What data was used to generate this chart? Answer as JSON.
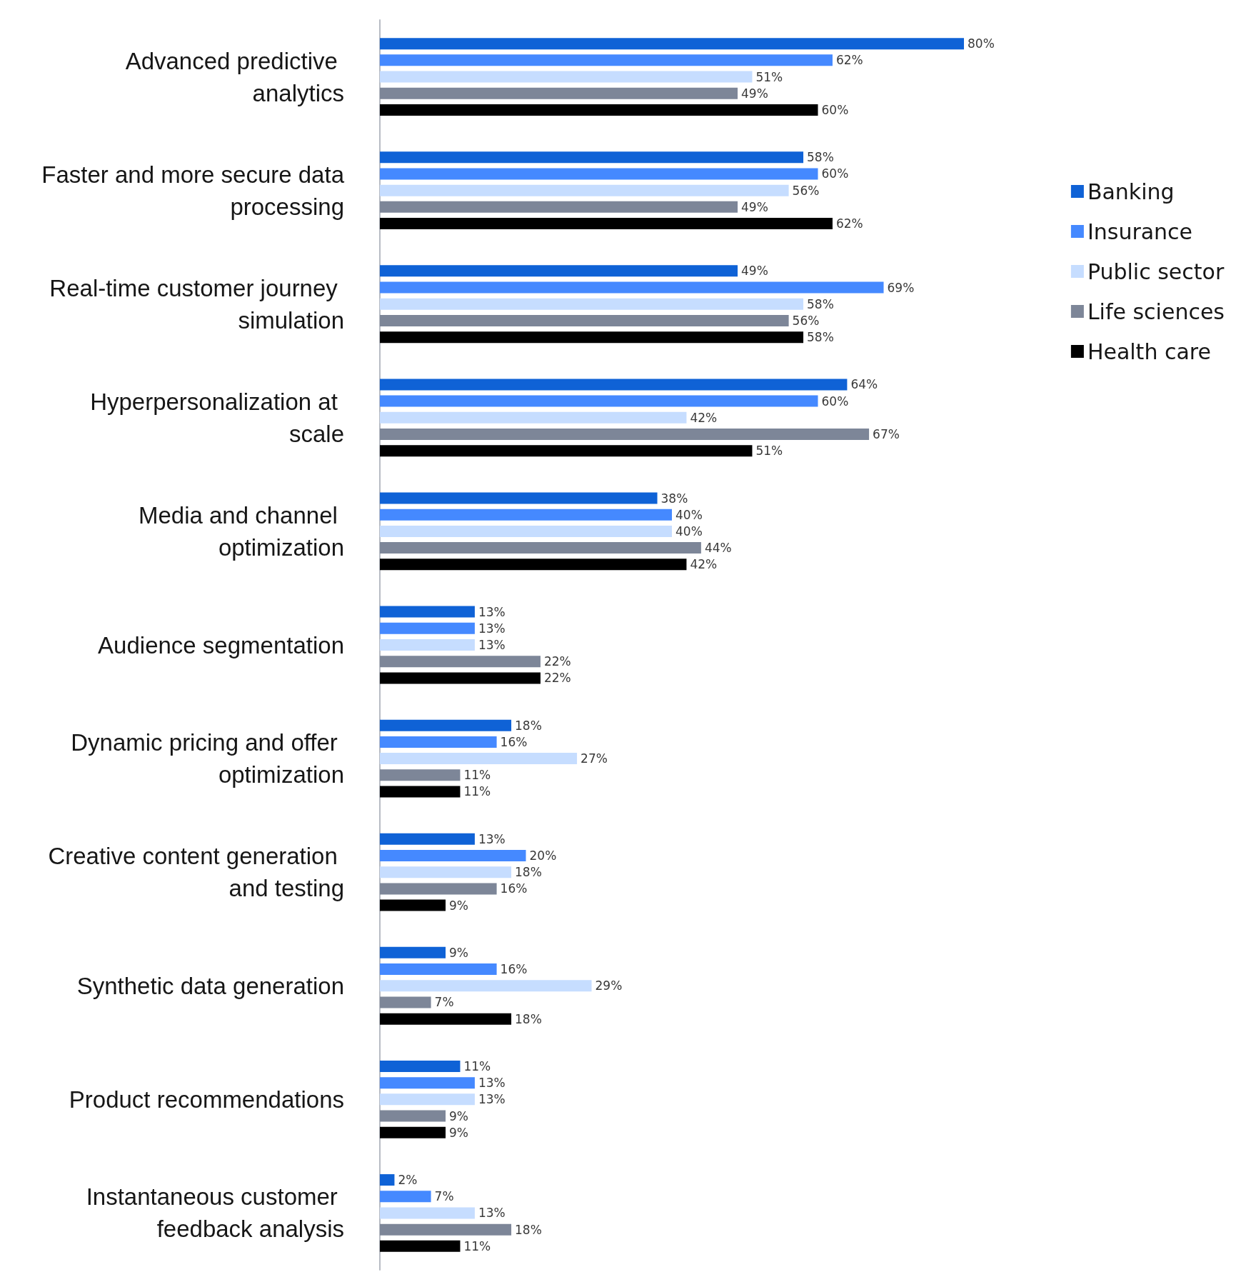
{
  "chart_data": {
    "type": "bar",
    "orientation": "horizontal",
    "categories": [
      "Advanced predictive analytics",
      "Faster and more secure data processing",
      "Real-time customer journey simulation",
      "Hyperpersonalization at scale",
      "Media and channel optimization",
      "Audience segmentation",
      "Dynamic pricing and offer optimization",
      "Creative content generation and testing",
      "Synthetic data generation",
      "Product recommendations",
      "Instantaneous customer feedback analysis"
    ],
    "legend": "right",
    "tick_labels": "y",
    "series": [
      {
        "name": "Banking",
        "color": "#0f62d6",
        "values": [
          80,
          58,
          49,
          64,
          38,
          13,
          18,
          13,
          9,
          11,
          2
        ],
        "value_labels": [
          "80%",
          "58%",
          "49%",
          "64%",
          "38%",
          "13%",
          "18%",
          "13%",
          "9%",
          "11%",
          "2%"
        ]
      },
      {
        "name": "Insurance",
        "color": "#4589ff",
        "values": [
          62,
          60,
          69,
          60,
          40,
          13,
          16,
          20,
          16,
          13,
          7
        ],
        "value_labels": [
          "62%",
          "60%",
          "69%",
          "60%",
          "40%",
          "13%",
          "16%",
          "20%",
          "16%",
          "13%",
          "7%"
        ]
      },
      {
        "name": "Public sector",
        "color": "#c6ddff",
        "values": [
          51,
          56,
          58,
          42,
          40,
          13,
          27,
          18,
          29,
          13,
          13
        ],
        "value_labels": [
          "51%",
          "56%",
          "58%",
          "42%",
          "40%",
          "13%",
          "27%",
          "18%",
          "29%",
          "13%",
          "13%"
        ]
      },
      {
        "name": "Life sciences",
        "color": "#7d8698",
        "values": [
          49,
          49,
          56,
          67,
          44,
          22,
          11,
          16,
          7,
          9,
          18
        ],
        "value_labels": [
          "49%",
          "49%",
          "56%",
          "67%",
          "44%",
          "22%",
          "11%",
          "16%",
          "7%",
          "9%",
          "18%"
        ]
      },
      {
        "name": "Health care",
        "color": "#000000",
        "values": [
          60,
          62,
          58,
          51,
          42,
          22,
          11,
          9,
          18,
          9,
          11
        ],
        "value_labels": [
          "60%",
          "62%",
          "58%",
          "51%",
          "42%",
          "22%",
          "11%",
          "9%",
          "18%",
          "9%",
          "11%"
        ]
      }
    ]
  }
}
